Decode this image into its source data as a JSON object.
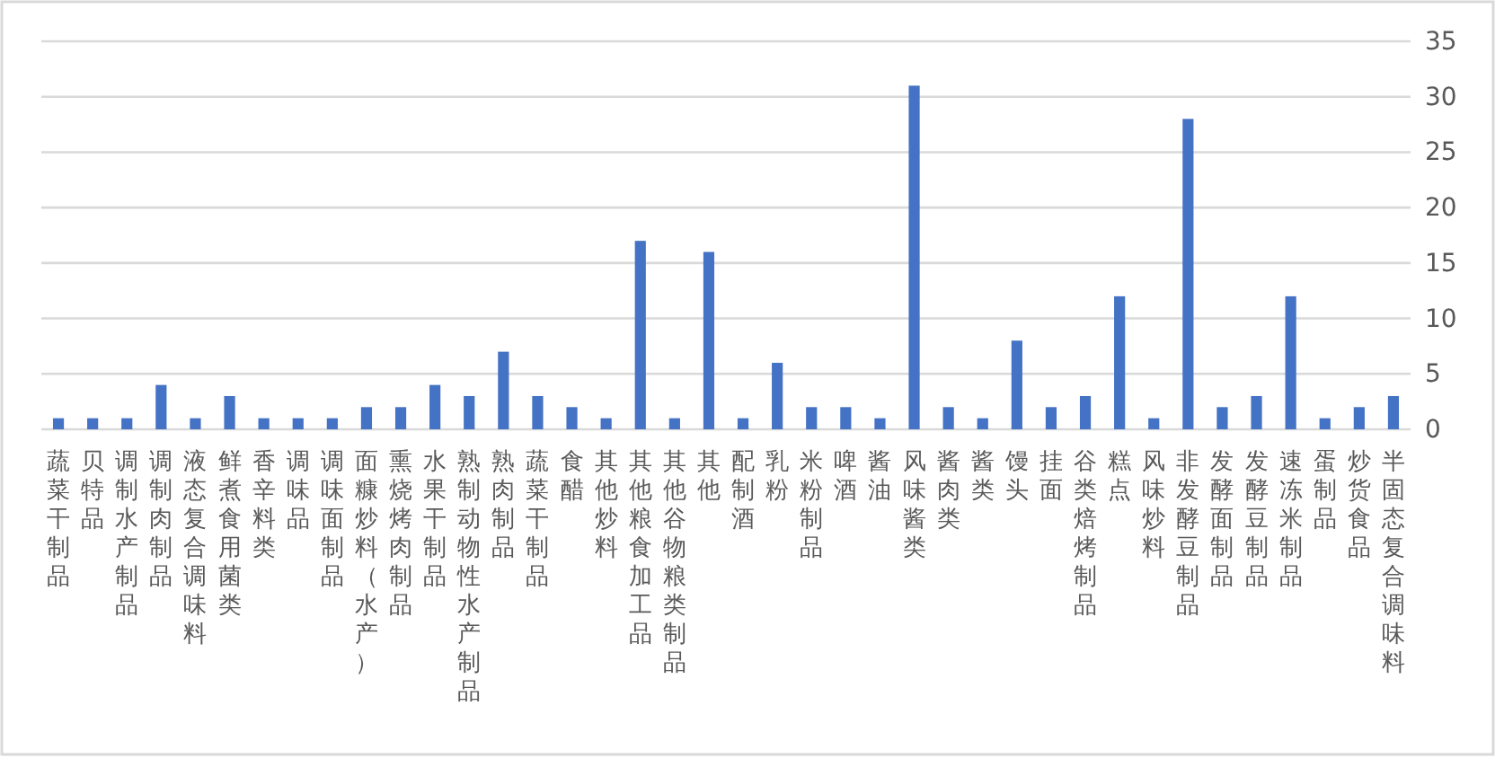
{
  "chart_data": {
    "type": "bar",
    "categories": [
      "蔬菜干制品",
      "贝特品",
      "调制水产制品",
      "调制肉制品",
      "液态复合调味料",
      "鲜煮食用菌类",
      "香辛料类",
      "调味品",
      "调味面制品",
      "面糠炒料（水产）",
      "熏烧烤肉制品",
      "水果干制品",
      "熟制动物性水产制品",
      "熟肉制品",
      "蔬菜干制品",
      "食醋",
      "其他炒料",
      "其他粮食加工品",
      "其他谷物粮类制品",
      "其他",
      "配制酒",
      "乳粉",
      "米粉制品",
      "啤酒",
      "酱油",
      "风味酱类",
      "酱肉类",
      "酱类",
      "馒头",
      "挂面",
      "谷类焙烤制品",
      "糕点",
      "风味炒料",
      "非发酵豆制品",
      "发酵面制品",
      "发酵豆制品",
      "速冻米制品",
      "蛋制品",
      "炒货食品",
      "半固态复合调味料"
    ],
    "values": [
      1,
      1,
      1,
      4,
      1,
      3,
      1,
      1,
      1,
      2,
      2,
      4,
      3,
      7,
      3,
      2,
      1,
      17,
      1,
      16,
      1,
      6,
      2,
      2,
      1,
      31,
      2,
      1,
      8,
      2,
      3,
      12,
      1,
      28,
      2,
      3,
      12,
      1,
      2,
      3
    ],
    "color": "#4472c4",
    "ylim": [
      0,
      35
    ],
    "yticks": [
      0,
      5,
      10,
      15,
      20,
      25,
      30,
      35
    ],
    "grid": "y"
  }
}
